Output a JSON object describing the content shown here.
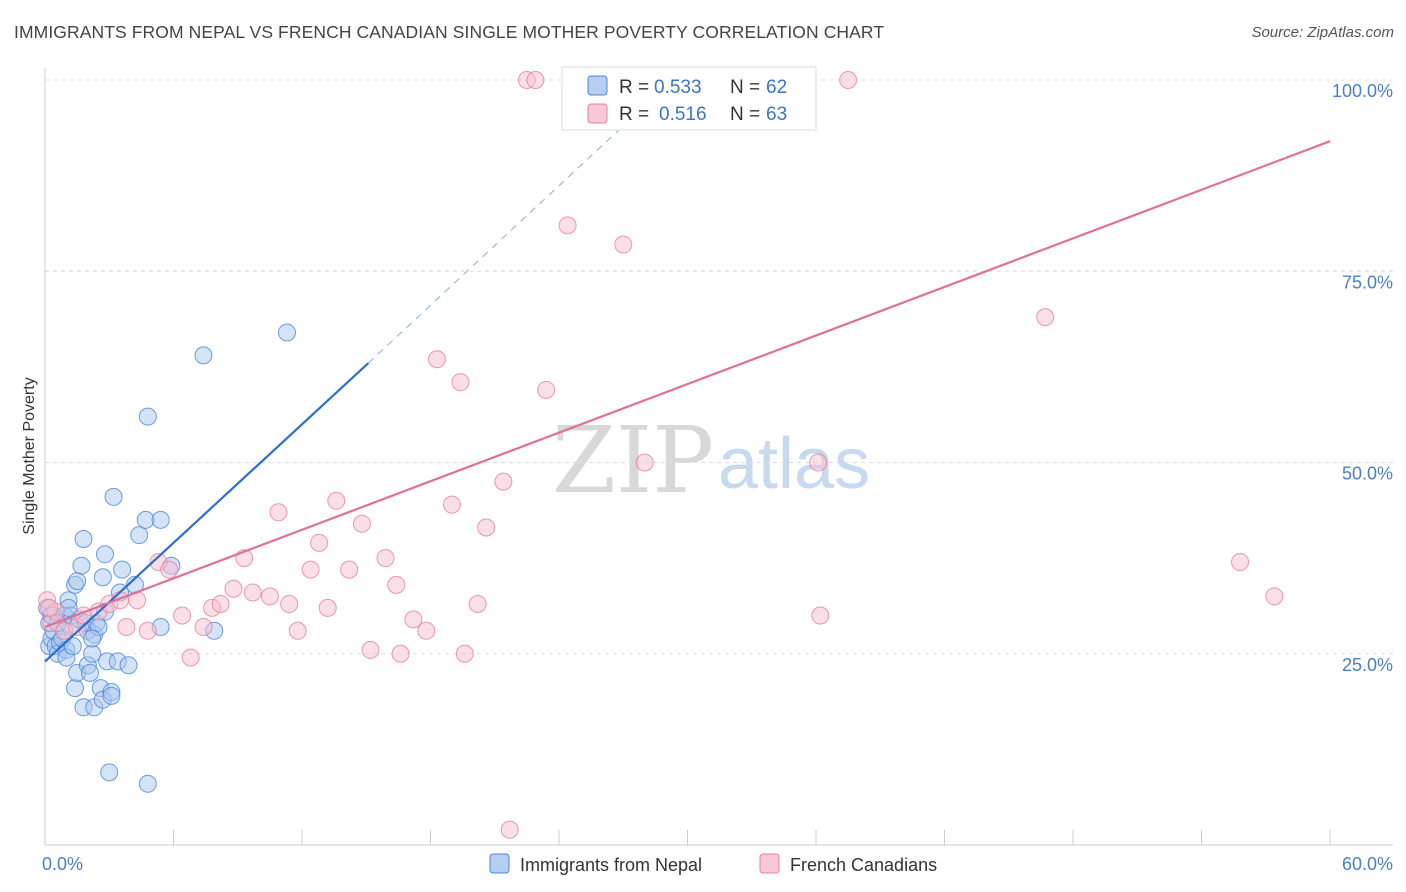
{
  "title": "IMMIGRANTS FROM NEPAL VS FRENCH CANADIAN SINGLE MOTHER POVERTY CORRELATION CHART",
  "source": "Source: ZipAtlas.com",
  "watermark": {
    "zip": "ZIP",
    "atlas": "atlas"
  },
  "colors": {
    "blue": "#4a86d8",
    "blue_fill": "#a9c7ee",
    "blue_line": "#2a6fd0",
    "pink": "#e8809f",
    "pink_fill": "#f6bfd0",
    "pink_line": "#e0709a",
    "grid": "#dddddd",
    "tick_text": "#4a7fc8"
  },
  "chart_data": {
    "type": "scatter",
    "title": "IMMIGRANTS FROM NEPAL VS FRENCH CANADIAN SINGLE MOTHER POVERTY CORRELATION CHART",
    "xlabel": "",
    "ylabel": "Single Mother Poverty",
    "xlim": [
      0,
      60
    ],
    "ylim": [
      0,
      100
    ],
    "x_tick_labels": [
      "0.0%",
      "60.0%"
    ],
    "y_tick_labels": [
      "25.0%",
      "50.0%",
      "75.0%",
      "100.0%"
    ],
    "y_ticks": [
      25,
      50,
      75,
      100
    ],
    "grid": true,
    "legend": [
      {
        "name": "Immigrants from Nepal",
        "r_label": "R =",
        "r": "0.533",
        "n_label": "N =",
        "n": "62"
      },
      {
        "name": "French Canadians",
        "r_label": "R =",
        "r": "0.516",
        "n_label": "N =",
        "n": "63"
      }
    ],
    "series": [
      {
        "name": "Immigrants from Nepal",
        "color_key": "blue",
        "trend": {
          "x0": 0,
          "y0": 24,
          "x1": 15.1,
          "y1": 63,
          "dash_to": {
            "x": 27,
            "y": 94
          }
        },
        "points": [
          [
            0.1,
            31
          ],
          [
            0.2,
            29
          ],
          [
            0.2,
            26
          ],
          [
            0.3,
            27
          ],
          [
            0.4,
            28
          ],
          [
            0.5,
            26
          ],
          [
            0.6,
            25
          ],
          [
            0.7,
            26.5
          ],
          [
            0.8,
            27
          ],
          [
            0.9,
            30
          ],
          [
            1.0,
            25.5
          ],
          [
            1.0,
            24.5
          ],
          [
            1.1,
            32
          ],
          [
            1.2,
            28.5
          ],
          [
            1.2,
            30
          ],
          [
            1.3,
            26
          ],
          [
            1.4,
            34
          ],
          [
            1.4,
            20.5
          ],
          [
            1.5,
            22.5
          ],
          [
            1.5,
            34.5
          ],
          [
            1.6,
            29.5
          ],
          [
            1.7,
            36.5
          ],
          [
            1.8,
            40
          ],
          [
            1.8,
            18
          ],
          [
            1.9,
            29
          ],
          [
            2.0,
            23.5
          ],
          [
            2.0,
            28
          ],
          [
            2.1,
            22.5
          ],
          [
            2.2,
            25
          ],
          [
            2.3,
            27.5
          ],
          [
            2.3,
            18
          ],
          [
            2.4,
            29
          ],
          [
            2.5,
            28.5
          ],
          [
            2.6,
            20.5
          ],
          [
            2.7,
            35
          ],
          [
            2.7,
            19
          ],
          [
            2.8,
            30.5
          ],
          [
            2.8,
            38
          ],
          [
            2.9,
            24
          ],
          [
            3.0,
            9.5
          ],
          [
            3.1,
            20
          ],
          [
            3.1,
            19.5
          ],
          [
            3.2,
            45.5
          ],
          [
            3.4,
            24
          ],
          [
            3.6,
            36
          ],
          [
            3.5,
            33
          ],
          [
            3.9,
            23.5
          ],
          [
            4.2,
            34
          ],
          [
            4.4,
            40.5
          ],
          [
            4.7,
            42.5
          ],
          [
            4.8,
            8
          ],
          [
            4.8,
            56
          ],
          [
            5.4,
            42.5
          ],
          [
            5.4,
            28.5
          ],
          [
            5.9,
            36.5
          ],
          [
            7.4,
            64
          ],
          [
            7.9,
            28
          ],
          [
            11.3,
            67
          ],
          [
            0.3,
            30
          ],
          [
            1.1,
            31
          ],
          [
            0.6,
            29
          ],
          [
            2.2,
            27
          ]
        ]
      },
      {
        "name": "French Canadians",
        "color_key": "pink",
        "trend": {
          "x0": 0,
          "y0": 28.5,
          "x1": 60,
          "y1": 92
        },
        "points": [
          [
            0.1,
            32
          ],
          [
            0.3,
            29
          ],
          [
            0.5,
            30.5
          ],
          [
            0.9,
            28
          ],
          [
            1.5,
            28.5
          ],
          [
            1.8,
            30
          ],
          [
            2.5,
            30.5
          ],
          [
            3.0,
            31.5
          ],
          [
            3.5,
            32
          ],
          [
            3.8,
            28.5
          ],
          [
            4.3,
            32
          ],
          [
            4.8,
            28
          ],
          [
            5.3,
            37
          ],
          [
            5.8,
            36
          ],
          [
            6.4,
            30
          ],
          [
            6.8,
            24.5
          ],
          [
            7.4,
            28.5
          ],
          [
            7.8,
            31
          ],
          [
            8.2,
            31.5
          ],
          [
            8.8,
            33.5
          ],
          [
            9.3,
            37.5
          ],
          [
            9.7,
            33
          ],
          [
            10.5,
            32.5
          ],
          [
            10.9,
            43.5
          ],
          [
            11.4,
            31.5
          ],
          [
            11.8,
            28
          ],
          [
            12.4,
            36
          ],
          [
            12.8,
            39.5
          ],
          [
            13.2,
            31
          ],
          [
            13.6,
            45
          ],
          [
            14.2,
            36
          ],
          [
            14.8,
            42
          ],
          [
            15.2,
            25.5
          ],
          [
            15.9,
            37.5
          ],
          [
            16.4,
            34
          ],
          [
            16.6,
            25
          ],
          [
            17.2,
            29.5
          ],
          [
            17.8,
            28
          ],
          [
            18.3,
            63.5
          ],
          [
            19.0,
            44.5
          ],
          [
            19.4,
            60.5
          ],
          [
            19.6,
            25
          ],
          [
            20.2,
            31.5
          ],
          [
            20.6,
            41.5
          ],
          [
            21.4,
            47.5
          ],
          [
            21.7,
            2
          ],
          [
            22.5,
            100
          ],
          [
            22.9,
            100
          ],
          [
            23.4,
            59.5
          ],
          [
            24.4,
            81
          ],
          [
            25.1,
            100
          ],
          [
            27.0,
            78.5
          ],
          [
            28.0,
            50
          ],
          [
            32.2,
            100
          ],
          [
            33.8,
            100
          ],
          [
            36.1,
            50
          ],
          [
            36.2,
            30
          ],
          [
            37.5,
            100
          ],
          [
            46.7,
            69
          ],
          [
            55.8,
            37
          ],
          [
            57.4,
            32.5
          ],
          [
            31.5,
            100
          ],
          [
            0.2,
            31
          ]
        ]
      }
    ]
  }
}
